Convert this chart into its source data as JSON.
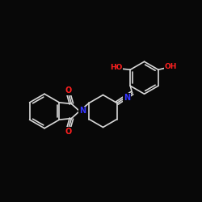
{
  "background_color": "#080808",
  "bond_color": "#d8d8d8",
  "atom_colors": {
    "O": "#ff2020",
    "N": "#3535ff",
    "C": "#d8d8d8"
  },
  "figsize": [
    2.5,
    2.5
  ],
  "dpi": 100
}
